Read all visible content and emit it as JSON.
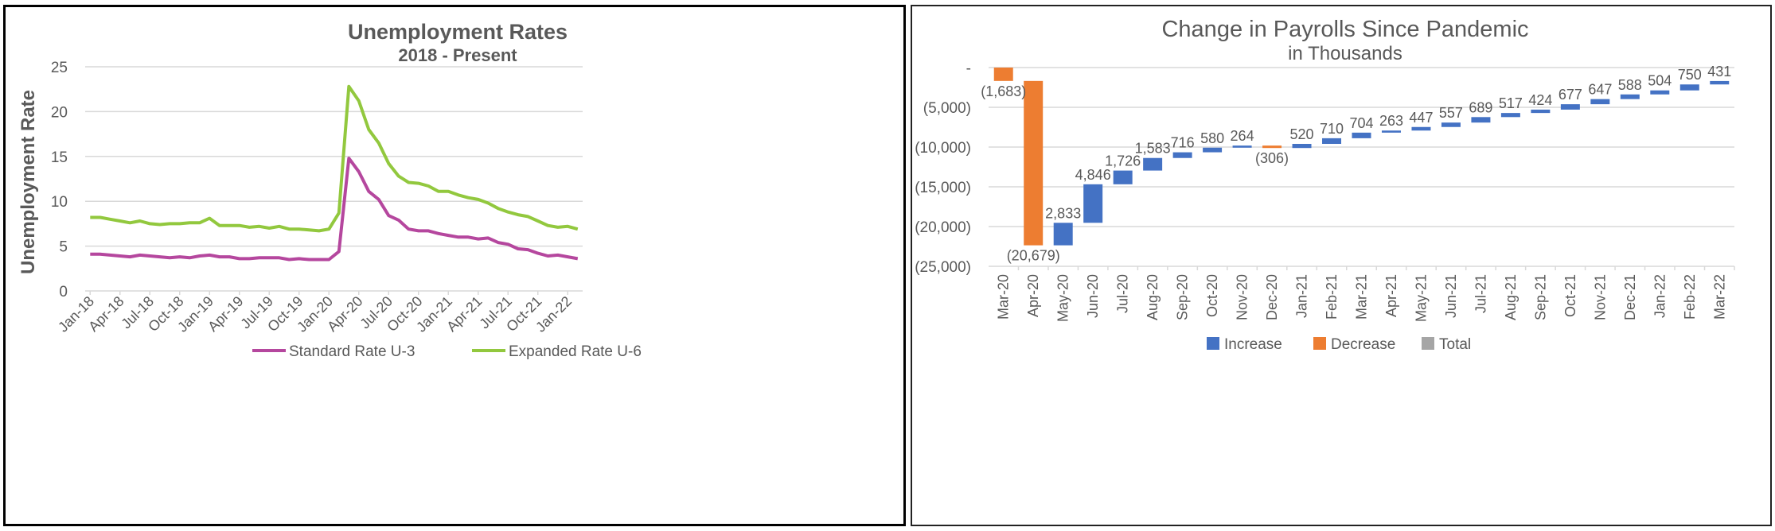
{
  "colors": {
    "u3": "#b5479e",
    "u6": "#92c83e",
    "increase": "#4472c4",
    "decrease": "#ed7d31",
    "total": "#a5a5a5",
    "grid": "#d9d9d9",
    "text": "#595959"
  },
  "chart_data": [
    {
      "type": "line",
      "title": "Unemployment Rates",
      "subtitle": "2018 - Present",
      "ylabel": "Unemployment Rate",
      "xlabel": "",
      "ylim": [
        0,
        25
      ],
      "yticks": [
        "0",
        "5",
        "10",
        "15",
        "20",
        "25"
      ],
      "grid": true,
      "legend_position": "bottom",
      "x_tick_labels": [
        "Jan-18",
        "Apr-18",
        "Jul-18",
        "Oct-18",
        "Jan-19",
        "Apr-19",
        "Jul-19",
        "Oct-19",
        "Jan-20",
        "Apr-20",
        "Jul-20",
        "Oct-20",
        "Jan-21",
        "Apr-21",
        "Jul-21",
        "Oct-21",
        "Jan-22"
      ],
      "series": [
        {
          "name": "Standard Rate U-3",
          "values": [
            4.1,
            4.1,
            4.0,
            3.9,
            3.8,
            4.0,
            3.9,
            3.8,
            3.7,
            3.8,
            3.7,
            3.9,
            4.0,
            3.8,
            3.8,
            3.6,
            3.6,
            3.7,
            3.7,
            3.7,
            3.5,
            3.6,
            3.5,
            3.5,
            3.5,
            4.4,
            14.8,
            13.3,
            11.1,
            10.2,
            8.4,
            7.9,
            6.9,
            6.7,
            6.7,
            6.4,
            6.2,
            6.0,
            6.0,
            5.8,
            5.9,
            5.4,
            5.2,
            4.7,
            4.6,
            4.2,
            3.9,
            4.0,
            3.8,
            3.6
          ]
        },
        {
          "name": "Expanded Rate U-6",
          "values": [
            8.2,
            8.2,
            8.0,
            7.8,
            7.6,
            7.8,
            7.5,
            7.4,
            7.5,
            7.5,
            7.6,
            7.6,
            8.1,
            7.3,
            7.3,
            7.3,
            7.1,
            7.2,
            7.0,
            7.2,
            6.9,
            6.9,
            6.8,
            6.7,
            6.9,
            8.7,
            22.8,
            21.2,
            18.0,
            16.5,
            14.2,
            12.8,
            12.1,
            12.0,
            11.7,
            11.1,
            11.1,
            10.7,
            10.4,
            10.2,
            9.8,
            9.2,
            8.8,
            8.5,
            8.3,
            7.8,
            7.3,
            7.1,
            7.2,
            6.9
          ]
        }
      ]
    },
    {
      "type": "bar",
      "subtype": "waterfall",
      "title": "Change in Payrolls Since Pandemic",
      "subtitle": "in Thousands",
      "xlabel": "",
      "ylabel": "",
      "ylim": [
        -25000,
        0
      ],
      "yticks": [
        "-",
        "(5,000)",
        "(10,000)",
        "(15,000)",
        "(20,000)",
        "(25,000)"
      ],
      "grid": true,
      "legend_position": "bottom",
      "legend": [
        "Increase",
        "Decrease",
        "Total"
      ],
      "categories": [
        "Mar-20",
        "Apr-20",
        "May-20",
        "Jun-20",
        "Jul-20",
        "Aug-20",
        "Sep-20",
        "Oct-20",
        "Nov-20",
        "Dec-20",
        "Jan-21",
        "Feb-21",
        "Mar-21",
        "Apr-21",
        "May-21",
        "Jun-21",
        "Jul-21",
        "Aug-21",
        "Sep-21",
        "Oct-21",
        "Nov-21",
        "Dec-21",
        "Jan-22",
        "Feb-22",
        "Mar-22"
      ],
      "values": [
        -1683,
        -20679,
        2833,
        4846,
        1726,
        1583,
        716,
        580,
        264,
        -306,
        520,
        710,
        704,
        263,
        447,
        557,
        689,
        517,
        424,
        677,
        647,
        588,
        504,
        750,
        431
      ],
      "data_labels": [
        "(1,683)",
        "(20,679)",
        "2,833",
        "4,846",
        "1,726",
        "1,583",
        "716",
        "580",
        "264",
        "(306)",
        "520",
        "710",
        "704",
        "263",
        "447",
        "557",
        "689",
        "517",
        "424",
        "677",
        "647",
        "588",
        "504",
        "750",
        "431"
      ]
    }
  ]
}
